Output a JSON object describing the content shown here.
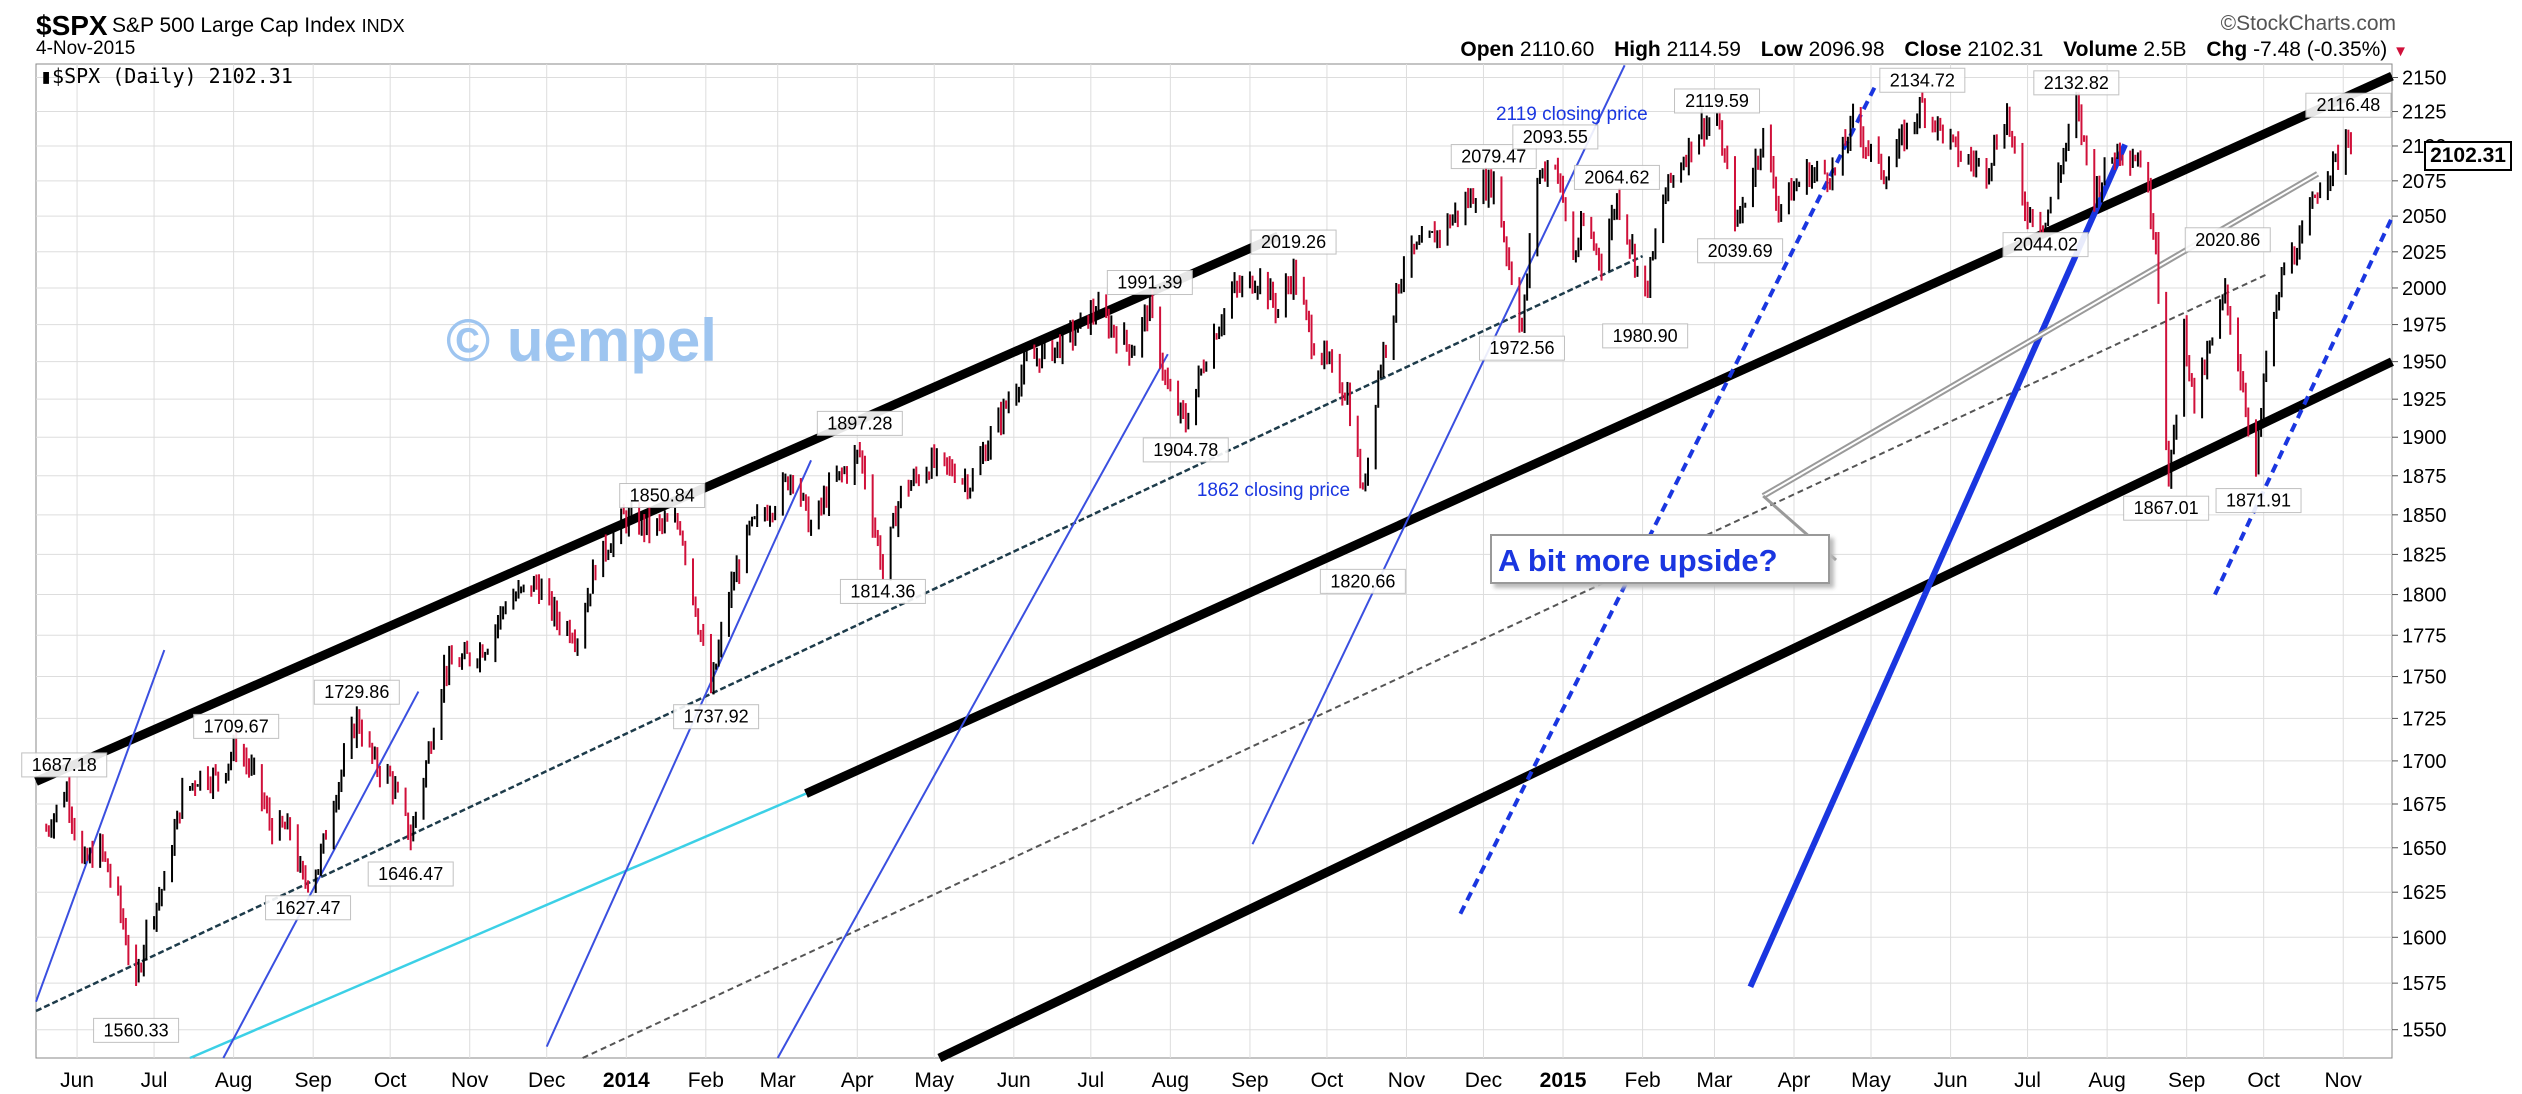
{
  "header": {
    "symbol": "$SPX",
    "name": "S&P 500 Large Cap Index",
    "exchange": "INDX",
    "date": "4-Nov-2015",
    "source": "©StockCharts.com",
    "legend": "$SPX (Daily) 2102.31",
    "open_label": "Open",
    "open": "2110.60",
    "high_label": "High",
    "high": "2114.59",
    "low_label": "Low",
    "low": "2096.98",
    "close_label": "Close",
    "close": "2102.31",
    "volume_label": "Volume",
    "volume": "2.5B",
    "chg_label": "Chg",
    "chg": "-7.48 (-0.35%)"
  },
  "watermark": "© uempel",
  "note": "A bit more upside?",
  "colors": {
    "up": "#000000",
    "down": "#d0103a",
    "blue": "#1a36e0",
    "cyan": "#3cd0e6",
    "grid": "#dddddd"
  },
  "chart_data": {
    "type": "line",
    "yscale": "log",
    "ylim": [
      1535,
      2160
    ],
    "yticks": [
      1550,
      1575,
      1600,
      1625,
      1650,
      1675,
      1700,
      1725,
      1750,
      1775,
      1800,
      1825,
      1850,
      1875,
      1900,
      1925,
      1950,
      1975,
      2000,
      2025,
      2050,
      2075,
      2100,
      2125,
      2150
    ],
    "xlim": [
      "2013-05-16",
      "2015-11-20"
    ],
    "xticks": [
      {
        "date": "2013-06-01",
        "label": "Jun"
      },
      {
        "date": "2013-07-01",
        "label": "Jul"
      },
      {
        "date": "2013-08-01",
        "label": "Aug"
      },
      {
        "date": "2013-09-01",
        "label": "Sep"
      },
      {
        "date": "2013-10-01",
        "label": "Oct"
      },
      {
        "date": "2013-11-01",
        "label": "Nov"
      },
      {
        "date": "2013-12-01",
        "label": "Dec"
      },
      {
        "date": "2014-01-01",
        "label": "2014",
        "bold": true
      },
      {
        "date": "2014-02-01",
        "label": "Feb"
      },
      {
        "date": "2014-03-01",
        "label": "Mar"
      },
      {
        "date": "2014-04-01",
        "label": "Apr"
      },
      {
        "date": "2014-05-01",
        "label": "May"
      },
      {
        "date": "2014-06-01",
        "label": "Jun"
      },
      {
        "date": "2014-07-01",
        "label": "Jul"
      },
      {
        "date": "2014-08-01",
        "label": "Aug"
      },
      {
        "date": "2014-09-01",
        "label": "Sep"
      },
      {
        "date": "2014-10-01",
        "label": "Oct"
      },
      {
        "date": "2014-11-01",
        "label": "Nov"
      },
      {
        "date": "2014-12-01",
        "label": "Dec"
      },
      {
        "date": "2015-01-01",
        "label": "2015",
        "bold": true
      },
      {
        "date": "2015-02-01",
        "label": "Feb"
      },
      {
        "date": "2015-03-01",
        "label": "Mar"
      },
      {
        "date": "2015-04-01",
        "label": "Apr"
      },
      {
        "date": "2015-05-01",
        "label": "May"
      },
      {
        "date": "2015-06-01",
        "label": "Jun"
      },
      {
        "date": "2015-07-01",
        "label": "Jul"
      },
      {
        "date": "2015-08-01",
        "label": "Aug"
      },
      {
        "date": "2015-09-01",
        "label": "Sep"
      },
      {
        "date": "2015-10-01",
        "label": "Oct"
      },
      {
        "date": "2015-11-01",
        "label": "Nov"
      }
    ],
    "last_price": "2102.31",
    "series": [
      {
        "points": [
          [
            "2013-05-20",
            1660
          ],
          [
            "2013-05-28",
            1684
          ],
          [
            "2013-06-03",
            1640
          ],
          [
            "2013-06-10",
            1650
          ],
          [
            "2013-06-17",
            1620
          ],
          [
            "2013-06-24",
            1573
          ],
          [
            "2013-06-28",
            1605
          ],
          [
            "2013-07-05",
            1630
          ],
          [
            "2013-07-12",
            1680
          ],
          [
            "2013-07-19",
            1692
          ],
          [
            "2013-07-26",
            1690
          ],
          [
            "2013-08-02",
            1709
          ],
          [
            "2013-08-09",
            1691
          ],
          [
            "2013-08-16",
            1661
          ],
          [
            "2013-08-23",
            1660
          ],
          [
            "2013-08-28",
            1630
          ],
          [
            "2013-09-03",
            1640
          ],
          [
            "2013-09-10",
            1683
          ],
          [
            "2013-09-18",
            1725
          ],
          [
            "2013-09-25",
            1698
          ],
          [
            "2013-10-01",
            1690
          ],
          [
            "2013-10-09",
            1656
          ],
          [
            "2013-10-15",
            1698
          ],
          [
            "2013-10-22",
            1754
          ],
          [
            "2013-11-01",
            1762
          ],
          [
            "2013-11-08",
            1770
          ],
          [
            "2013-11-15",
            1795
          ],
          [
            "2013-11-27",
            1807
          ],
          [
            "2013-12-05",
            1785
          ],
          [
            "2013-12-13",
            1775
          ],
          [
            "2013-12-20",
            1818
          ],
          [
            "2013-12-31",
            1848
          ],
          [
            "2014-01-10",
            1842
          ],
          [
            "2014-01-22",
            1844
          ],
          [
            "2014-01-28",
            1792
          ],
          [
            "2014-02-03",
            1741
          ],
          [
            "2014-02-10",
            1799
          ],
          [
            "2014-02-18",
            1840
          ],
          [
            "2014-02-28",
            1859
          ],
          [
            "2014-03-07",
            1878
          ],
          [
            "2014-03-14",
            1841
          ],
          [
            "2014-03-21",
            1866
          ],
          [
            "2014-04-02",
            1890
          ],
          [
            "2014-04-11",
            1815
          ],
          [
            "2014-04-18",
            1864
          ],
          [
            "2014-04-30",
            1883
          ],
          [
            "2014-05-09",
            1878
          ],
          [
            "2014-05-15",
            1870
          ],
          [
            "2014-05-23",
            1900
          ],
          [
            "2014-06-06",
            1949
          ],
          [
            "2014-06-20",
            1962
          ],
          [
            "2014-07-03",
            1985
          ],
          [
            "2014-07-17",
            1958
          ],
          [
            "2014-07-24",
            1988
          ],
          [
            "2014-07-31",
            1930
          ],
          [
            "2014-08-07",
            1909
          ],
          [
            "2014-08-15",
            1955
          ],
          [
            "2014-08-25",
            1997
          ],
          [
            "2014-09-05",
            2007
          ],
          [
            "2014-09-12",
            1985
          ],
          [
            "2014-09-18",
            2011
          ],
          [
            "2014-09-25",
            1965
          ],
          [
            "2014-10-02",
            1946
          ],
          [
            "2014-10-09",
            1928
          ],
          [
            "2014-10-15",
            1862
          ],
          [
            "2014-10-21",
            1941
          ],
          [
            "2014-10-31",
            2018
          ],
          [
            "2014-11-14",
            2039
          ],
          [
            "2014-11-28",
            2067
          ],
          [
            "2014-12-05",
            2075
          ],
          [
            "2014-12-10",
            2026
          ],
          [
            "2014-12-16",
            1972
          ],
          [
            "2014-12-22",
            2078
          ],
          [
            "2014-12-29",
            2090
          ],
          [
            "2015-01-05",
            2020
          ],
          [
            "2015-01-09",
            2044
          ],
          [
            "2015-01-16",
            2019
          ],
          [
            "2015-01-22",
            2063
          ],
          [
            "2015-02-02",
            1995
          ],
          [
            "2015-02-10",
            2068
          ],
          [
            "2015-02-24",
            2115
          ],
          [
            "2015-03-02",
            2117
          ],
          [
            "2015-03-10",
            2044
          ],
          [
            "2015-03-20",
            2108
          ],
          [
            "2015-03-26",
            2056
          ],
          [
            "2015-04-06",
            2080
          ],
          [
            "2015-04-17",
            2081
          ],
          [
            "2015-04-24",
            2117
          ],
          [
            "2015-05-06",
            2080
          ],
          [
            "2015-05-21",
            2130
          ],
          [
            "2015-06-05",
            2092
          ],
          [
            "2015-06-15",
            2084
          ],
          [
            "2015-06-23",
            2124
          ],
          [
            "2015-06-29",
            2057
          ],
          [
            "2015-07-08",
            2046
          ],
          [
            "2015-07-20",
            2128
          ],
          [
            "2015-07-27",
            2067
          ],
          [
            "2015-08-05",
            2099
          ],
          [
            "2015-08-14",
            2091
          ],
          [
            "2015-08-20",
            2035
          ],
          [
            "2015-08-25",
            1867
          ],
          [
            "2015-08-31",
            1972
          ],
          [
            "2015-09-04",
            1921
          ],
          [
            "2015-09-16",
            1996
          ],
          [
            "2015-09-22",
            1942
          ],
          [
            "2015-09-28",
            1881
          ],
          [
            "2015-10-02",
            1951
          ],
          [
            "2015-10-09",
            2014
          ],
          [
            "2015-10-16",
            2033
          ],
          [
            "2015-10-23",
            2075
          ],
          [
            "2015-10-29",
            2089
          ],
          [
            "2015-11-03",
            2109
          ],
          [
            "2015-11-04",
            2102
          ]
        ]
      }
    ],
    "annotations": [
      {
        "date": "2013-05-27",
        "value": 1687.18,
        "text": "1687.18",
        "pos": "above"
      },
      {
        "date": "2013-06-24",
        "value": 1560.33,
        "text": "1560.33",
        "pos": "below"
      },
      {
        "date": "2013-08-02",
        "value": 1709.67,
        "text": "1709.67",
        "pos": "above"
      },
      {
        "date": "2013-08-30",
        "value": 1627.47,
        "text": "1627.47",
        "pos": "below"
      },
      {
        "date": "2013-09-18",
        "value": 1729.86,
        "text": "1729.86",
        "pos": "above"
      },
      {
        "date": "2013-10-09",
        "value": 1646.47,
        "text": "1646.47",
        "pos": "below"
      },
      {
        "date": "2014-01-15",
        "value": 1850.84,
        "text": "1850.84",
        "pos": "above"
      },
      {
        "date": "2014-02-05",
        "value": 1737.92,
        "text": "1737.92",
        "pos": "below"
      },
      {
        "date": "2014-04-02",
        "value": 1897.28,
        "text": "1897.28",
        "pos": "above"
      },
      {
        "date": "2014-04-11",
        "value": 1814.36,
        "text": "1814.36",
        "pos": "below"
      },
      {
        "date": "2014-07-24",
        "value": 1991.39,
        "text": "1991.39",
        "pos": "above"
      },
      {
        "date": "2014-08-07",
        "value": 1904.78,
        "text": "1904.78",
        "pos": "below"
      },
      {
        "date": "2014-09-18",
        "value": 2019.26,
        "text": "2019.26",
        "pos": "above"
      },
      {
        "date": "2014-10-15",
        "value": 1820.66,
        "text": "1820.66",
        "pos": "below"
      },
      {
        "date": "2014-12-05",
        "value": 2079.47,
        "text": "2079.47",
        "pos": "above"
      },
      {
        "date": "2014-12-16",
        "value": 1972.56,
        "text": "1972.56",
        "pos": "below"
      },
      {
        "date": "2014-12-29",
        "value": 2093.55,
        "text": "2093.55",
        "pos": "above"
      },
      {
        "date": "2015-01-22",
        "value": 2064.62,
        "text": "2064.62",
        "pos": "above"
      },
      {
        "date": "2015-02-02",
        "value": 1980.9,
        "text": "1980.90",
        "pos": "below"
      },
      {
        "date": "2015-03-02",
        "value": 2119.59,
        "text": "2119.59",
        "pos": "above"
      },
      {
        "date": "2015-03-11",
        "value": 2039.69,
        "text": "2039.69",
        "pos": "below"
      },
      {
        "date": "2015-05-21",
        "value": 2134.72,
        "text": "2134.72",
        "pos": "above"
      },
      {
        "date": "2015-07-08",
        "value": 2044.02,
        "text": "2044.02",
        "pos": "below"
      },
      {
        "date": "2015-07-20",
        "value": 2132.82,
        "text": "2132.82",
        "pos": "above"
      },
      {
        "date": "2015-08-24",
        "value": 1867.01,
        "text": "1867.01",
        "pos": "below"
      },
      {
        "date": "2015-09-17",
        "value": 2020.86,
        "text": "2020.86",
        "pos": "above"
      },
      {
        "date": "2015-09-29",
        "value": 1871.91,
        "text": "1871.91",
        "pos": "below"
      },
      {
        "date": "2015-11-03",
        "value": 2116.48,
        "text": "2116.48",
        "pos": "above"
      }
    ],
    "text_notes": [
      {
        "date": "2014-10-10",
        "value": 1862,
        "text": "1862 closing price"
      },
      {
        "date": "2015-02-03",
        "value": 2119,
        "text": "2119 closing price"
      }
    ],
    "trendlines": [
      {
        "style": "thick",
        "from": [
          "2013-05-16",
          1688
        ],
        "to": [
          "2014-09-12",
          2036
        ]
      },
      {
        "style": "thick",
        "from": [
          "2014-03-12",
          1681
        ],
        "to": [
          "2015-11-20",
          2151
        ]
      },
      {
        "style": "thick",
        "from": [
          "2014-05-03",
          1535
        ],
        "to": [
          "2015-11-20",
          1950
        ]
      },
      {
        "style": "dark-dashed",
        "from": [
          "2013-05-16",
          1560
        ],
        "to": [
          "2015-02-01",
          2022
        ]
      },
      {
        "style": "gray-dashed",
        "from": [
          "2013-12-15",
          1535
        ],
        "to": [
          "2015-10-03",
          2010
        ]
      },
      {
        "style": "cyan",
        "from": [
          "2013-07-15",
          1535
        ],
        "to": [
          "2014-03-12",
          1681
        ]
      },
      {
        "style": "thin-blue",
        "from": [
          "2013-05-16",
          1565
        ],
        "to": [
          "2013-07-05",
          1766
        ]
      },
      {
        "style": "thin-blue",
        "from": [
          "2013-07-28",
          1535
        ],
        "to": [
          "2013-10-12",
          1741
        ]
      },
      {
        "style": "thin-blue",
        "from": [
          "2013-12-01",
          1541
        ],
        "to": [
          "2014-03-14",
          1885
        ]
      },
      {
        "style": "thin-blue",
        "from": [
          "2014-03-01",
          1535
        ],
        "to": [
          "2014-07-31",
          1955
        ]
      },
      {
        "style": "thin-blue",
        "from": [
          "2014-09-02",
          1652
        ],
        "to": [
          "2015-01-25",
          2159
        ]
      },
      {
        "style": "dashed-blue",
        "from": [
          "2014-11-22",
          1613
        ],
        "to": [
          "2015-05-03",
          2145
        ]
      },
      {
        "style": "dashed-blue",
        "from": [
          "2015-09-12",
          1800
        ],
        "to": [
          "2015-11-20",
          2049
        ]
      },
      {
        "style": "thick-blue",
        "from": [
          "2015-03-15",
          1573
        ],
        "to": [
          "2015-08-08",
          2101
        ]
      },
      {
        "style": "gray-double",
        "from": [
          "2015-03-20",
          1862
        ],
        "to": [
          "2015-10-22",
          2080
        ]
      }
    ]
  }
}
